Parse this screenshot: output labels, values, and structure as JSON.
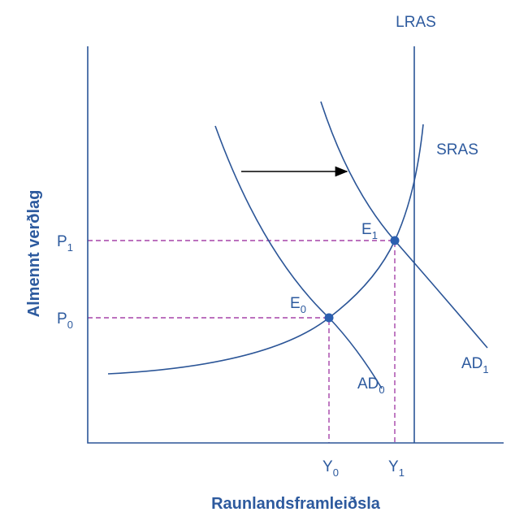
{
  "axes": {
    "y_title": "Almennt verðlag",
    "x_title": "Raunlandsframleiðsla"
  },
  "curves": {
    "lras": "LRAS",
    "sras": "SRAS",
    "ad0": {
      "main": "AD",
      "sub": "0"
    },
    "ad1": {
      "main": "AD",
      "sub": "1"
    }
  },
  "points": {
    "e0": {
      "main": "E",
      "sub": "0"
    },
    "e1": {
      "main": "E",
      "sub": "1"
    }
  },
  "ticks": {
    "p0": {
      "main": "P",
      "sub": "0"
    },
    "p1": {
      "main": "P",
      "sub": "1"
    },
    "y0": {
      "main": "Y",
      "sub": "0"
    },
    "y1": {
      "main": "Y",
      "sub": "1"
    }
  }
}
